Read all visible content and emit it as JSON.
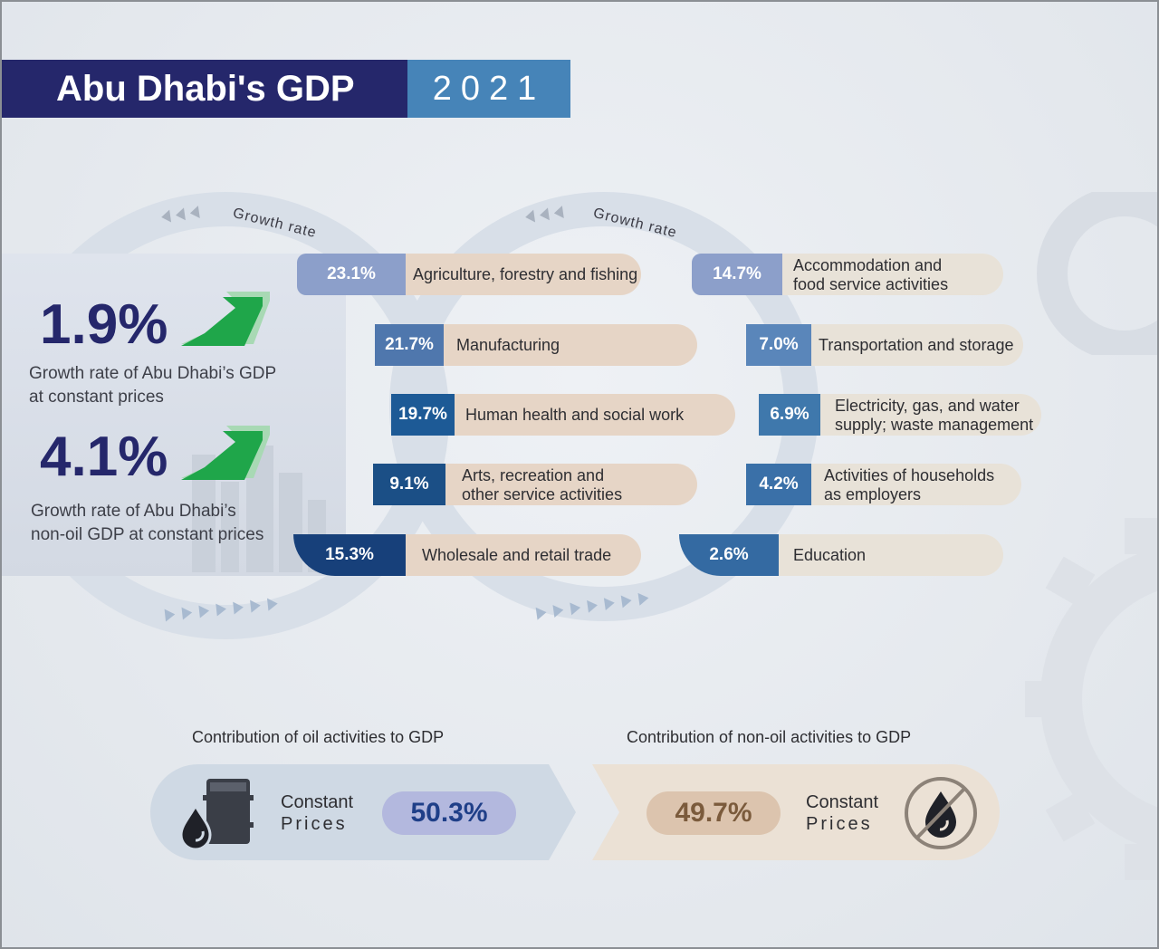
{
  "header": {
    "title": "Abu Dhabi's GDP",
    "year": "2021"
  },
  "headline": {
    "gdp_growth": {
      "value": "1.9%",
      "caption_line1": "Growth rate of Abu Dhabi’s GDP",
      "caption_line2": "at constant prices"
    },
    "nonoil_growth": {
      "value": "4.1%",
      "caption_line1": "Growth rate of Abu Dhabi’s",
      "caption_line2": "non-oil GDP at constant prices"
    }
  },
  "ring_label": "Growth rate",
  "sectors_left": [
    {
      "value": "23.1%",
      "line1": "Agriculture, forestry and fishing",
      "line2": "",
      "color": "#8c9fca"
    },
    {
      "value": "21.7%",
      "line1": "Manufacturing",
      "line2": "",
      "color": "#4f77ad"
    },
    {
      "value": "19.7%",
      "line1": "Human health and social work",
      "line2": "",
      "color": "#1d5a96"
    },
    {
      "value": "9.1%",
      "line1": "Arts, recreation and",
      "line2": "other service activities",
      "color": "#1b4f86"
    },
    {
      "value": "15.3%",
      "line1": "Wholesale and retail trade",
      "line2": "",
      "color": "#17407a"
    }
  ],
  "sectors_right": [
    {
      "value": "14.7%",
      "line1": "Accommodation and",
      "line2": "food service activities",
      "color": "#8c9fca"
    },
    {
      "value": "7.0%",
      "line1": "Transportation and storage",
      "line2": "",
      "color": "#5a86ba"
    },
    {
      "value": "6.9%",
      "line1": "Electricity, gas, and water",
      "line2": "supply; waste management",
      "color": "#3f78ac"
    },
    {
      "value": "4.2%",
      "line1": "Activities of households",
      "line2": "as employers",
      "color": "#3a70a8"
    },
    {
      "value": "2.6%",
      "line1": "Education",
      "line2": "",
      "color": "#346aa2"
    }
  ],
  "contribution": {
    "oil": {
      "title": "Contribution of oil activities to GDP",
      "label_line1": "Constant",
      "label_line2": "Prices",
      "value": "50.3%"
    },
    "nonoil": {
      "title": "Contribution of non-oil activities to GDP",
      "label_line1": "Constant",
      "label_line2": "Prices",
      "value": "49.7%"
    }
  },
  "colors": {
    "navy": "#25276b",
    "accent_blue": "#4684b8",
    "arrow_green": "#1fa64a",
    "oil_pill": "#b3b8de",
    "nonoil_pill": "#dcc4ae",
    "oil_text": "#1f3f88",
    "nonoil_text": "#7b5b3c"
  },
  "icons": [
    "up-trend-arrow-icon",
    "oil-barrel-icon",
    "no-oil-icon",
    "gear-icon",
    "chevron-arrow-icon"
  ]
}
